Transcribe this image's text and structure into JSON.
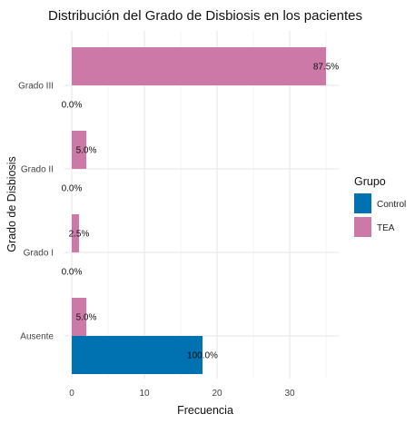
{
  "chart_data": {
    "type": "bar",
    "orientation": "horizontal",
    "title": "Distribución del Grado de Disbiosis en los pacientes",
    "xlabel": "Frecuencia",
    "ylabel": "Grado de Disbiosis",
    "categories": [
      "Ausente",
      "Grado I",
      "Grado II",
      "Grado III"
    ],
    "xlim": [
      0,
      36
    ],
    "xticks": [
      0,
      10,
      20,
      30
    ],
    "grid": true,
    "legend": {
      "title": "Grupo",
      "position": "right"
    },
    "series": [
      {
        "name": "Control",
        "color": "#0072B2",
        "values": [
          18,
          0,
          0,
          0
        ],
        "labels": [
          "100.0%",
          "0.0%",
          "0.0%",
          "0.0%"
        ]
      },
      {
        "name": "TEA",
        "color": "#CC79A7",
        "values": [
          2,
          1,
          2,
          35
        ],
        "labels": [
          "5.0%",
          "2.5%",
          "5.0%",
          "87.5%"
        ]
      }
    ]
  }
}
